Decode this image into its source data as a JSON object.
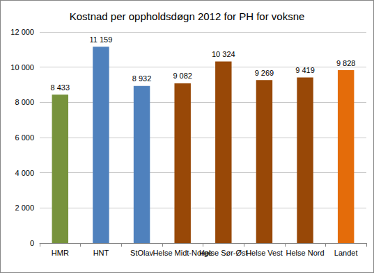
{
  "chart_data": {
    "type": "bar",
    "title": "Kostnad per oppholdsdøgn 2012 for PH for voksne",
    "categories": [
      "HMR",
      "HNT",
      "StOlav",
      "Helse Midt-Norge",
      "Helse Sør-Øst",
      "Helse Vest",
      "Helse Nord",
      "Landet"
    ],
    "values": [
      8433,
      11159,
      8932,
      9082,
      10324,
      9269,
      9419,
      9828
    ],
    "value_labels": [
      "8 433",
      "11 159",
      "8 932",
      "9 082",
      "10 324",
      "9 269",
      "9 419",
      "9 828"
    ],
    "colors": [
      "#77933c",
      "#4f81bd",
      "#4f81bd",
      "#984807",
      "#984807",
      "#984807",
      "#984807",
      "#e46c0a"
    ],
    "ylim": [
      0,
      12000
    ],
    "yticks": [
      0,
      {
        "value": 2000,
        "label": "2 000"
      },
      {
        "value": 4000,
        "label": "4 000"
      },
      {
        "value": 6000,
        "label": "6 000"
      },
      {
        "value": 8000,
        "label": "8 000"
      },
      {
        "value": 10000,
        "label": "10 000"
      },
      {
        "value": 12000,
        "label": "12 000"
      }
    ],
    "grid": true,
    "data_labels": true
  }
}
